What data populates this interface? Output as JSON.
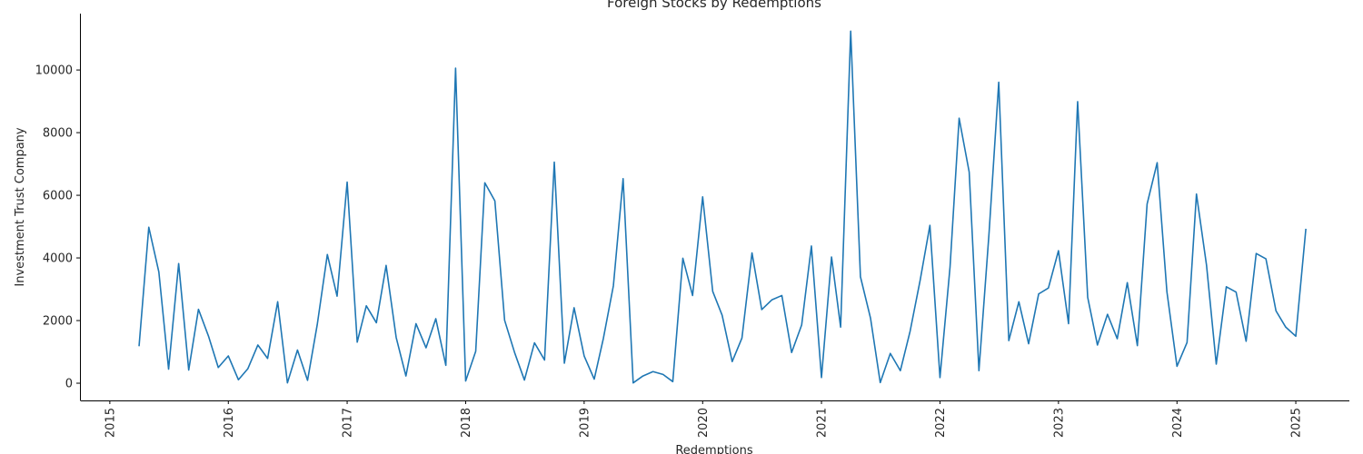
{
  "chart_data": {
    "type": "line",
    "title": "Foreign Stocks by Redemptions",
    "xlabel": "Redemptions",
    "ylabel": "Investment Trust Company",
    "x_ticks": [
      "2015",
      "2016",
      "2017",
      "2018",
      "2019",
      "2020",
      "2021",
      "2022",
      "2023",
      "2024",
      "2025"
    ],
    "y_ticks": [
      "0",
      "2000",
      "4000",
      "6000",
      "8000",
      "10000"
    ],
    "xlim": [
      "2014-10-01",
      "2025-06-15"
    ],
    "ylim": [
      -550,
      11800
    ],
    "grid": false,
    "color": "#1f77b4",
    "series": [
      {
        "points": [
          [
            "2015-04",
            1180
          ],
          [
            "2015-05",
            4980
          ],
          [
            "2015-06",
            3550
          ],
          [
            "2015-07",
            450
          ],
          [
            "2015-08",
            3820
          ],
          [
            "2015-09",
            420
          ],
          [
            "2015-10",
            2360
          ],
          [
            "2015-11",
            1500
          ],
          [
            "2015-12",
            500
          ],
          [
            "2016-01",
            870
          ],
          [
            "2016-02",
            110
          ],
          [
            "2016-03",
            460
          ],
          [
            "2016-04",
            1220
          ],
          [
            "2016-05",
            790
          ],
          [
            "2016-06",
            2600
          ],
          [
            "2016-07",
            10
          ],
          [
            "2016-08",
            1060
          ],
          [
            "2016-09",
            90
          ],
          [
            "2016-10",
            1880
          ],
          [
            "2016-11",
            4110
          ],
          [
            "2016-12",
            2780
          ],
          [
            "2017-01",
            6420
          ],
          [
            "2017-02",
            1310
          ],
          [
            "2017-03",
            2470
          ],
          [
            "2017-04",
            1930
          ],
          [
            "2017-05",
            3760
          ],
          [
            "2017-06",
            1460
          ],
          [
            "2017-07",
            230
          ],
          [
            "2017-08",
            1900
          ],
          [
            "2017-09",
            1130
          ],
          [
            "2017-10",
            2060
          ],
          [
            "2017-11",
            570
          ],
          [
            "2017-12",
            10060
          ],
          [
            "2018-01",
            70
          ],
          [
            "2018-02",
            1020
          ],
          [
            "2018-03",
            6400
          ],
          [
            "2018-04",
            5820
          ],
          [
            "2018-05",
            2010
          ],
          [
            "2018-06",
            970
          ],
          [
            "2018-07",
            100
          ],
          [
            "2018-08",
            1290
          ],
          [
            "2018-09",
            740
          ],
          [
            "2018-10",
            7060
          ],
          [
            "2018-11",
            640
          ],
          [
            "2018-12",
            2410
          ],
          [
            "2019-01",
            870
          ],
          [
            "2019-02",
            130
          ],
          [
            "2019-03",
            1420
          ],
          [
            "2019-04",
            3110
          ],
          [
            "2019-05",
            6530
          ],
          [
            "2019-06",
            10
          ],
          [
            "2019-07",
            230
          ],
          [
            "2019-08",
            370
          ],
          [
            "2019-09",
            280
          ],
          [
            "2019-10",
            50
          ],
          [
            "2019-11",
            3990
          ],
          [
            "2019-12",
            2800
          ],
          [
            "2020-01",
            5950
          ],
          [
            "2020-02",
            2930
          ],
          [
            "2020-03",
            2170
          ],
          [
            "2020-04",
            690
          ],
          [
            "2020-05",
            1440
          ],
          [
            "2020-06",
            4160
          ],
          [
            "2020-07",
            2350
          ],
          [
            "2020-08",
            2660
          ],
          [
            "2020-09",
            2800
          ],
          [
            "2020-10",
            980
          ],
          [
            "2020-11",
            1860
          ],
          [
            "2020-12",
            4380
          ],
          [
            "2021-01",
            180
          ],
          [
            "2021-02",
            4030
          ],
          [
            "2021-03",
            1790
          ],
          [
            "2021-04",
            11240
          ],
          [
            "2021-05",
            3400
          ],
          [
            "2021-06",
            2080
          ],
          [
            "2021-07",
            20
          ],
          [
            "2021-08",
            950
          ],
          [
            "2021-09",
            400
          ],
          [
            "2021-10",
            1660
          ],
          [
            "2021-11",
            3290
          ],
          [
            "2021-12",
            5040
          ],
          [
            "2022-01",
            180
          ],
          [
            "2022-02",
            3710
          ],
          [
            "2022-03",
            8460
          ],
          [
            "2022-04",
            6740
          ],
          [
            "2022-05",
            400
          ],
          [
            "2022-06",
            4770
          ],
          [
            "2022-07",
            9610
          ],
          [
            "2022-08",
            1360
          ],
          [
            "2022-09",
            2600
          ],
          [
            "2022-10",
            1260
          ],
          [
            "2022-11",
            2850
          ],
          [
            "2022-12",
            3040
          ],
          [
            "2023-01",
            4230
          ],
          [
            "2023-02",
            1900
          ],
          [
            "2023-03",
            8990
          ],
          [
            "2023-04",
            2740
          ],
          [
            "2023-05",
            1220
          ],
          [
            "2023-06",
            2200
          ],
          [
            "2023-07",
            1420
          ],
          [
            "2023-08",
            3210
          ],
          [
            "2023-09",
            1200
          ],
          [
            "2023-10",
            5720
          ],
          [
            "2023-11",
            7040
          ],
          [
            "2023-12",
            2920
          ],
          [
            "2024-01",
            540
          ],
          [
            "2024-02",
            1300
          ],
          [
            "2024-03",
            6040
          ],
          [
            "2024-04",
            3770
          ],
          [
            "2024-05",
            610
          ],
          [
            "2024-06",
            3080
          ],
          [
            "2024-07",
            2910
          ],
          [
            "2024-08",
            1340
          ],
          [
            "2024-09",
            4140
          ],
          [
            "2024-10",
            3970
          ],
          [
            "2024-11",
            2310
          ],
          [
            "2024-12",
            1790
          ],
          [
            "2025-01",
            1500
          ],
          [
            "2025-02",
            4930
          ]
        ]
      }
    ]
  }
}
